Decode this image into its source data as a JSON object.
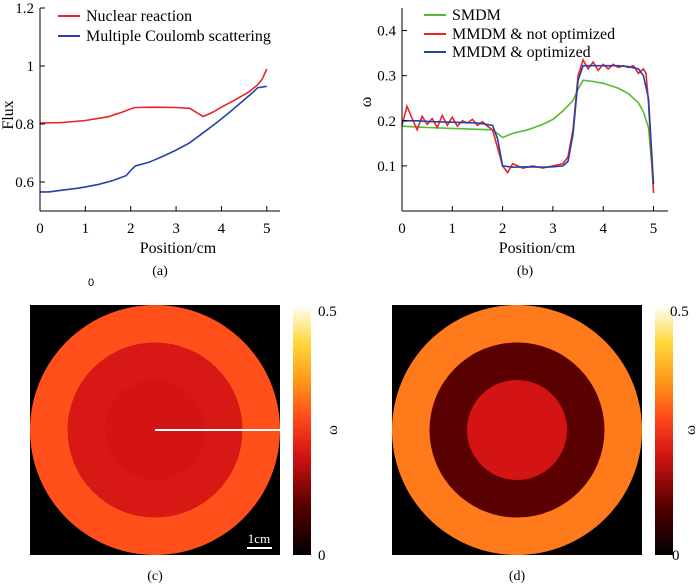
{
  "captions": {
    "a": "(a)",
    "b": "(b)",
    "c": "(c)",
    "d": "(d)"
  },
  "stray_mark": "0",
  "chart_data": [
    {
      "type": "line",
      "panel": "a",
      "xlabel": "Position/cm",
      "ylabel": "Flux",
      "xlim": [
        0,
        5.3
      ],
      "ylim": [
        0.5,
        1.2
      ],
      "xticks": [
        0,
        1,
        2,
        3,
        4,
        5
      ],
      "yticks": [
        0.6,
        0.8,
        1,
        1.2
      ],
      "ytick_labels": [
        "0.6",
        "0.8",
        "1",
        "1.2"
      ],
      "legend_position": "top-left",
      "series": [
        {
          "name": "Nuclear reaction",
          "color": "#ee2222",
          "x": [
            0,
            0.5,
            1,
            1.5,
            1.8,
            2.0,
            2.1,
            2.5,
            3.0,
            3.3,
            3.5,
            3.6,
            3.8,
            4.0,
            4.3,
            4.6,
            4.8,
            4.9,
            5.0
          ],
          "y": [
            0.803,
            0.805,
            0.812,
            0.825,
            0.84,
            0.852,
            0.857,
            0.858,
            0.857,
            0.854,
            0.835,
            0.826,
            0.84,
            0.858,
            0.883,
            0.91,
            0.935,
            0.955,
            0.99
          ]
        },
        {
          "name": "Multiple Coulomb scattering",
          "color": "#2244aa",
          "x": [
            0,
            0.2,
            0.5,
            0.8,
            1.0,
            1.3,
            1.6,
            1.9,
            2.0,
            2.1,
            2.4,
            2.7,
            3.0,
            3.3,
            3.6,
            3.9,
            4.2,
            4.5,
            4.7,
            4.8,
            5.0
          ],
          "y": [
            0.566,
            0.566,
            0.572,
            0.578,
            0.583,
            0.592,
            0.605,
            0.622,
            0.64,
            0.655,
            0.668,
            0.688,
            0.71,
            0.735,
            0.77,
            0.805,
            0.843,
            0.883,
            0.91,
            0.925,
            0.93
          ]
        }
      ]
    },
    {
      "type": "line",
      "panel": "b",
      "xlabel": "Position/cm",
      "ylabel": "ω",
      "xlim": [
        0,
        5.3
      ],
      "ylim": [
        0,
        0.45
      ],
      "xticks": [
        0,
        1,
        2,
        3,
        4,
        5
      ],
      "yticks": [
        0.1,
        0.2,
        0.3,
        0.4
      ],
      "legend_position": "top-right",
      "series": [
        {
          "name": "SMDM",
          "color": "#55bb33",
          "x": [
            0,
            0.5,
            1.0,
            1.5,
            1.8,
            2.0,
            2.2,
            2.5,
            2.8,
            3.0,
            3.2,
            3.4,
            3.5,
            3.6,
            3.8,
            4.0,
            4.3,
            4.5,
            4.7,
            4.8,
            4.9,
            5.0
          ],
          "y": [
            0.188,
            0.185,
            0.183,
            0.181,
            0.18,
            0.163,
            0.172,
            0.18,
            0.192,
            0.203,
            0.222,
            0.245,
            0.27,
            0.29,
            0.287,
            0.283,
            0.272,
            0.26,
            0.24,
            0.22,
            0.185,
            0.06
          ]
        },
        {
          "name": "MMDM & not optimized",
          "color": "#ee2222",
          "x": [
            0,
            0.1,
            0.2,
            0.3,
            0.4,
            0.5,
            0.6,
            0.7,
            0.8,
            0.9,
            1.0,
            1.1,
            1.2,
            1.3,
            1.4,
            1.5,
            1.6,
            1.7,
            1.8,
            1.9,
            2.0,
            2.1,
            2.2,
            2.4,
            2.6,
            2.8,
            3.0,
            3.2,
            3.3,
            3.4,
            3.5,
            3.6,
            3.7,
            3.8,
            3.9,
            4.0,
            4.1,
            4.2,
            4.3,
            4.4,
            4.5,
            4.6,
            4.7,
            4.8,
            4.85,
            4.9,
            5.0
          ],
          "y": [
            0.19,
            0.232,
            0.205,
            0.18,
            0.21,
            0.192,
            0.205,
            0.185,
            0.212,
            0.19,
            0.208,
            0.188,
            0.2,
            0.195,
            0.203,
            0.19,
            0.198,
            0.188,
            0.18,
            0.14,
            0.1,
            0.085,
            0.105,
            0.095,
            0.1,
            0.095,
            0.1,
            0.105,
            0.12,
            0.18,
            0.3,
            0.335,
            0.315,
            0.33,
            0.312,
            0.325,
            0.315,
            0.325,
            0.318,
            0.322,
            0.318,
            0.322,
            0.305,
            0.315,
            0.305,
            0.24,
            0.04
          ]
        },
        {
          "name": "MMDM & optimized",
          "color": "#2244aa",
          "x": [
            0,
            0.3,
            0.6,
            0.9,
            1.2,
            1.5,
            1.8,
            1.9,
            2.0,
            2.2,
            2.5,
            2.8,
            3.0,
            3.2,
            3.3,
            3.4,
            3.5,
            3.6,
            3.8,
            4.0,
            4.3,
            4.5,
            4.7,
            4.8,
            4.9,
            5.0
          ],
          "y": [
            0.2,
            0.2,
            0.198,
            0.197,
            0.196,
            0.195,
            0.19,
            0.16,
            0.1,
            0.097,
            0.098,
            0.097,
            0.098,
            0.1,
            0.11,
            0.17,
            0.29,
            0.322,
            0.322,
            0.322,
            0.322,
            0.32,
            0.315,
            0.3,
            0.25,
            0.06
          ]
        }
      ]
    },
    {
      "type": "heatmap",
      "panel": "c",
      "colorbar_label": "ω",
      "colorbar_ticks": [
        "0.5",
        "0"
      ],
      "vmin": 0,
      "vmax": 0.5,
      "scale_bar_label": "1cm",
      "profile_line": true,
      "rings": [
        {
          "r_cm": 2.0,
          "value": 0.2
        },
        {
          "r_cm": 3.5,
          "value": 0.205
        },
        {
          "r_cm": 5.0,
          "value": 0.28
        }
      ],
      "background_value": 0
    },
    {
      "type": "heatmap",
      "panel": "d",
      "colorbar_label": "ω",
      "colorbar_ticks": [
        "0.5",
        "0"
      ],
      "vmin": 0,
      "vmax": 0.5,
      "rings": [
        {
          "r_cm": 2.0,
          "value": 0.2
        },
        {
          "r_cm": 3.5,
          "value": 0.1
        },
        {
          "r_cm": 5.0,
          "value": 0.32
        }
      ],
      "background_value": 0
    }
  ]
}
